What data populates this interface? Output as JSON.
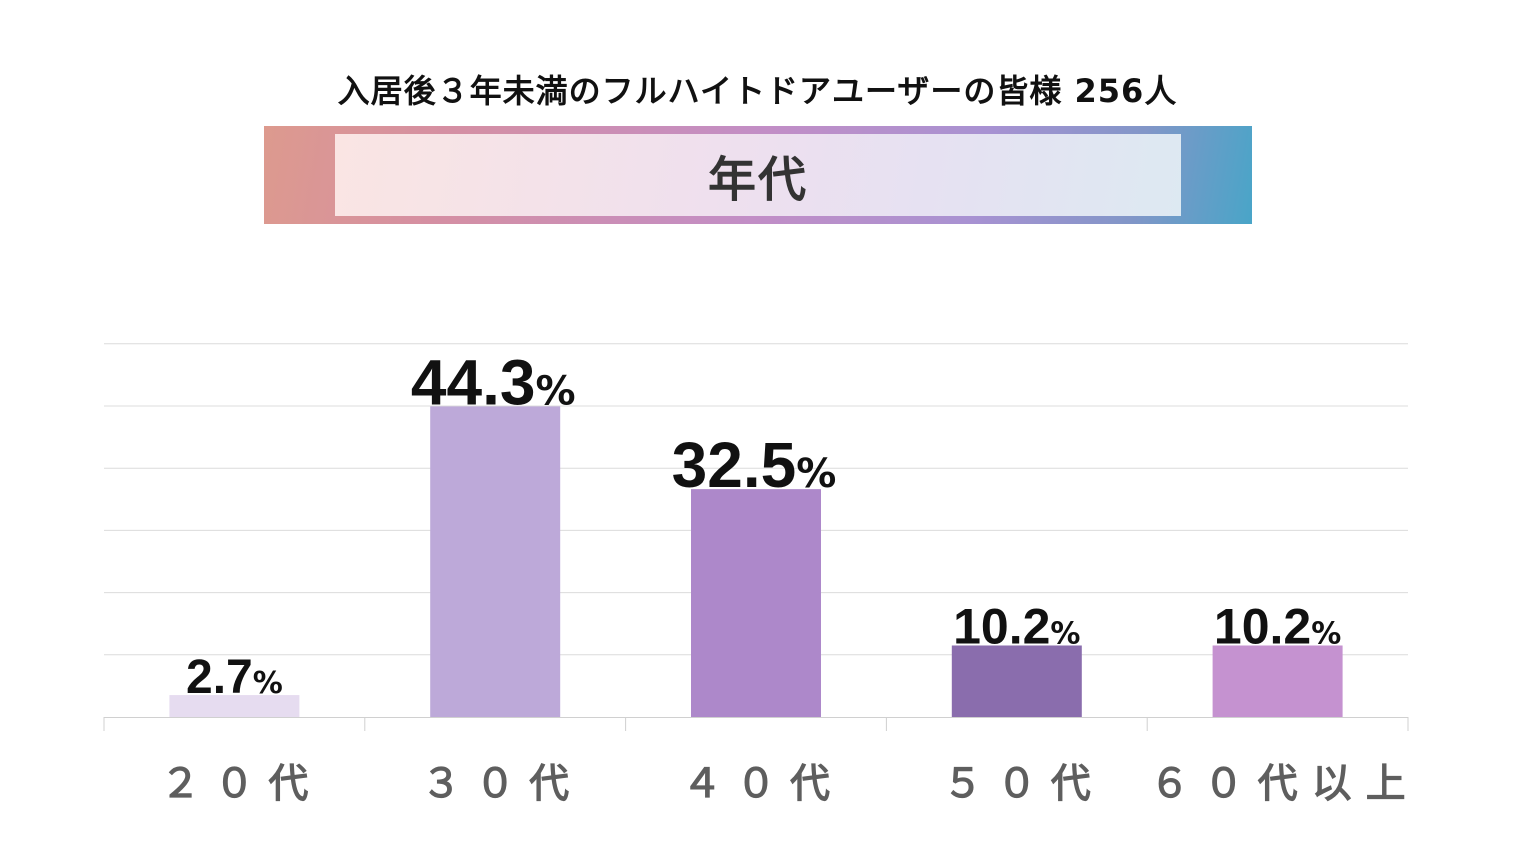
{
  "header": {
    "subtitle": "入居後３年未満のフルハイトドアユーザーの皆様 256人",
    "banner_title": "年代"
  },
  "colors": {
    "bars": [
      "#e6dcf0",
      "#bda9d9",
      "#ad88ca",
      "#8a6dad",
      "#c592d0"
    ],
    "grid": "#dcdcdc",
    "axis": "#d0d0d0",
    "category_text": "#5e5e5e",
    "value_text": "#111111"
  },
  "chart_data": {
    "type": "bar",
    "title": "年代",
    "xlabel": "",
    "ylabel": "",
    "categories": [
      "２０代",
      "３０代",
      "４０代",
      "５０代",
      "６０代以上"
    ],
    "values": [
      2.7,
      44.3,
      32.5,
      10.2,
      10.2
    ],
    "value_labels": [
      "2.7",
      "44.3",
      "32.5",
      "10.2",
      "10.2"
    ],
    "unit": "%",
    "ylim": [
      0,
      60
    ],
    "grid": true,
    "legend": "none"
  }
}
